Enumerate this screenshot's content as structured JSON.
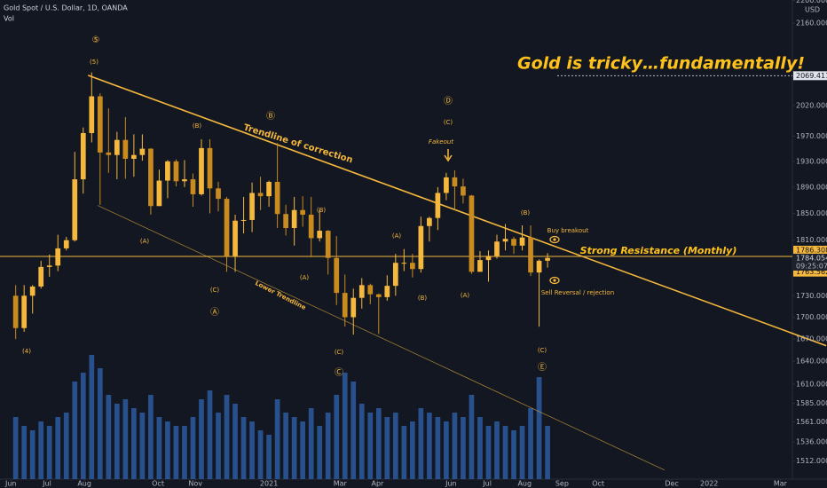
{
  "chart_data": {
    "type": "candlestick",
    "title": "Gold Spot / U.S. Dollar, 1D, OANDA",
    "volume_label": "Vol",
    "currency": "USD",
    "log_scale": true,
    "ylim": [
      1490,
      2201
    ],
    "yticks": [
      {
        "value": 2200,
        "label": "2200.000"
      },
      {
        "value": 2160,
        "label": "2160.000"
      },
      {
        "value": 2020,
        "label": "2020.000"
      },
      {
        "value": 1970,
        "label": "1970.000"
      },
      {
        "value": 1930,
        "label": "1930.000"
      },
      {
        "value": 1890,
        "label": "1890.000"
      },
      {
        "value": 1850,
        "label": "1850.000"
      },
      {
        "value": 1810,
        "label": "1810.000"
      },
      {
        "value": 1730,
        "label": "1730.000"
      },
      {
        "value": 1700,
        "label": "1700.000"
      },
      {
        "value": 1670,
        "label": "1670.000"
      },
      {
        "value": 1640,
        "label": "1640.000"
      },
      {
        "value": 1610,
        "label": "1610.000"
      },
      {
        "value": 1585,
        "label": "1585.000"
      },
      {
        "value": 1561,
        "label": "1561.000"
      },
      {
        "value": 1536,
        "label": "1536.000"
      },
      {
        "value": 1512,
        "label": "1512.000"
      }
    ],
    "xlim": [
      "2020-05-23",
      "2022-03-11"
    ],
    "xticks": [
      {
        "value": "2020-06-01",
        "label": "Jun"
      },
      {
        "value": "2020-07-01",
        "label": "Jul"
      },
      {
        "value": "2020-08-01",
        "label": "Aug"
      },
      {
        "value": "2020-10-01",
        "label": "Oct"
      },
      {
        "value": "2020-11-01",
        "label": "Nov"
      },
      {
        "value": "2021-01-01",
        "label": "2021"
      },
      {
        "value": "2021-03-01",
        "label": "Mar"
      },
      {
        "value": "2021-04-01",
        "label": "Apr"
      },
      {
        "value": "2021-06-01",
        "label": "Jun"
      },
      {
        "value": "2021-07-01",
        "label": "Jul"
      },
      {
        "value": "2021-08-01",
        "label": "Aug"
      },
      {
        "value": "2021-09-01",
        "label": "Sep"
      },
      {
        "value": "2021-10-01",
        "label": "Oct"
      },
      {
        "value": "2021-12-01",
        "label": "Dec"
      },
      {
        "value": "2022-01-01",
        "label": "2022"
      },
      {
        "value": "2022-03-01",
        "label": "Mar"
      }
    ],
    "up_color": "#f5b83d",
    "down_color": "#c98a1e",
    "volume_color": "#2d5fa8",
    "x": [
      "2020-06-05",
      "2020-06-12",
      "2020-06-19",
      "2020-06-26",
      "2020-07-03",
      "2020-07-10",
      "2020-07-17",
      "2020-07-24",
      "2020-07-31",
      "2020-08-07",
      "2020-08-14",
      "2020-08-21",
      "2020-08-28",
      "2020-09-04",
      "2020-09-11",
      "2020-09-18",
      "2020-09-25",
      "2020-10-02",
      "2020-10-09",
      "2020-10-16",
      "2020-10-23",
      "2020-10-30",
      "2020-11-06",
      "2020-11-13",
      "2020-11-20",
      "2020-11-27",
      "2020-12-04",
      "2020-12-11",
      "2020-12-18",
      "2020-12-25",
      "2021-01-01",
      "2021-01-08",
      "2021-01-15",
      "2021-01-22",
      "2021-01-29",
      "2021-02-05",
      "2021-02-12",
      "2021-02-19",
      "2021-02-26",
      "2021-03-05",
      "2021-03-12",
      "2021-03-19",
      "2021-03-26",
      "2021-04-02",
      "2021-04-09",
      "2021-04-16",
      "2021-04-23",
      "2021-04-30",
      "2021-05-07",
      "2021-05-14",
      "2021-05-21",
      "2021-05-28",
      "2021-06-04",
      "2021-06-11",
      "2021-06-18",
      "2021-06-25",
      "2021-07-02",
      "2021-07-09",
      "2021-07-16",
      "2021-07-23",
      "2021-07-30",
      "2021-08-06",
      "2021-08-13",
      "2021-08-20"
    ],
    "open": [
      1730,
      1685,
      1730,
      1743,
      1771,
      1773,
      1798,
      1810,
      1902,
      1975,
      2035,
      1944,
      1940,
      1964,
      1934,
      1940,
      1950,
      1861,
      1900,
      1930,
      1899,
      1902,
      1879,
      1951,
      1888,
      1872,
      1787,
      1839,
      1840,
      1881,
      1876,
      1898,
      1849,
      1828,
      1855,
      1848,
      1813,
      1824,
      1784,
      1734,
      1700,
      1727,
      1745,
      1732,
      1728,
      1744,
      1777,
      1777,
      1768,
      1831,
      1843,
      1881,
      1905,
      1891,
      1877,
      1764,
      1781,
      1787,
      1808,
      1812,
      1802,
      1814,
      1763,
      1780
    ],
    "high": [
      1745,
      1745,
      1745,
      1780,
      1789,
      1818,
      1815,
      1945,
      1984,
      2075,
      2040,
      2015,
      1977,
      2001,
      1973,
      1973,
      1951,
      1917,
      1932,
      1933,
      1932,
      1911,
      1965,
      1965,
      1898,
      1875,
      1848,
      1875,
      1897,
      1906,
      1900,
      1959,
      1863,
      1875,
      1876,
      1875,
      1855,
      1825,
      1816,
      1760,
      1740,
      1755,
      1747,
      1733,
      1759,
      1790,
      1797,
      1790,
      1845,
      1845,
      1890,
      1912,
      1916,
      1903,
      1878,
      1794,
      1795,
      1818,
      1834,
      1815,
      1832,
      1832,
      1782,
      1791
    ],
    "low": [
      1670,
      1680,
      1705,
      1740,
      1757,
      1765,
      1795,
      1808,
      1880,
      1960,
      1863,
      1912,
      1902,
      1903,
      1906,
      1931,
      1848,
      1861,
      1873,
      1891,
      1890,
      1860,
      1877,
      1850,
      1853,
      1764,
      1764,
      1820,
      1822,
      1855,
      1860,
      1828,
      1817,
      1802,
      1830,
      1785,
      1808,
      1760,
      1717,
      1687,
      1676,
      1712,
      1718,
      1677,
      1723,
      1730,
      1765,
      1756,
      1763,
      1808,
      1825,
      1870,
      1855,
      1865,
      1761,
      1765,
      1750,
      1783,
      1795,
      1790,
      1795,
      1758,
      1687,
      1770
    ],
    "close": [
      1685,
      1730,
      1743,
      1771,
      1773,
      1798,
      1810,
      1902,
      1975,
      2035,
      1944,
      1940,
      1964,
      1934,
      1940,
      1950,
      1861,
      1900,
      1930,
      1899,
      1902,
      1879,
      1951,
      1888,
      1872,
      1787,
      1839,
      1840,
      1881,
      1876,
      1898,
      1849,
      1828,
      1855,
      1848,
      1813,
      1824,
      1784,
      1734,
      1700,
      1727,
      1745,
      1732,
      1728,
      1744,
      1777,
      1777,
      1768,
      1831,
      1843,
      1881,
      1905,
      1891,
      1877,
      1764,
      1781,
      1787,
      1808,
      1812,
      1802,
      1814,
      1763,
      1780,
      1784
    ],
    "volume": [
      70,
      60,
      55,
      65,
      60,
      70,
      75,
      110,
      120,
      140,
      125,
      95,
      85,
      90,
      80,
      75,
      95,
      70,
      65,
      60,
      60,
      70,
      90,
      100,
      75,
      95,
      85,
      70,
      65,
      55,
      50,
      90,
      75,
      70,
      65,
      80,
      60,
      75,
      95,
      120,
      110,
      85,
      75,
      80,
      70,
      75,
      60,
      65,
      80,
      75,
      70,
      65,
      75,
      70,
      95,
      70,
      60,
      65,
      60,
      55,
      60,
      80,
      115,
      60
    ],
    "price_markers": [
      {
        "value": 2069.411,
        "label": "2069.411"
      },
      {
        "value": 1786.308,
        "label": "1786.308"
      },
      {
        "value": 1784.054,
        "label": "1784.054"
      },
      {
        "value": 1763.562,
        "label": "1763.562"
      }
    ],
    "countdown": "09:25:07",
    "trendlines": [
      {
        "name": "Trendline of correction",
        "x": [
          "2020-08-04",
          "2022-04-08"
        ],
        "y": [
          2070,
          1661
        ]
      },
      {
        "name": "Lower Trendline",
        "x": [
          "2020-08-12",
          "2021-11-25"
        ],
        "y": [
          1862,
          1501
        ]
      }
    ],
    "resistance_label": "Strong Resistance (Monthly)",
    "headline": "Gold is tricky…fundamentally!",
    "annotations": [
      "⑤",
      "(5)",
      "(4)",
      "(B)",
      "Ⓑ",
      "(A)",
      "(C)",
      "Ⓐ",
      "(A)",
      "(B)",
      "(C)",
      "Ⓒ",
      "(A)",
      "(B)",
      "Ⓓ",
      "(C)",
      "Fakeout",
      "(A)",
      "(B)",
      "(C)",
      "Ⓔ",
      "Buy breakout",
      "Sell Reversal / rejection"
    ]
  }
}
